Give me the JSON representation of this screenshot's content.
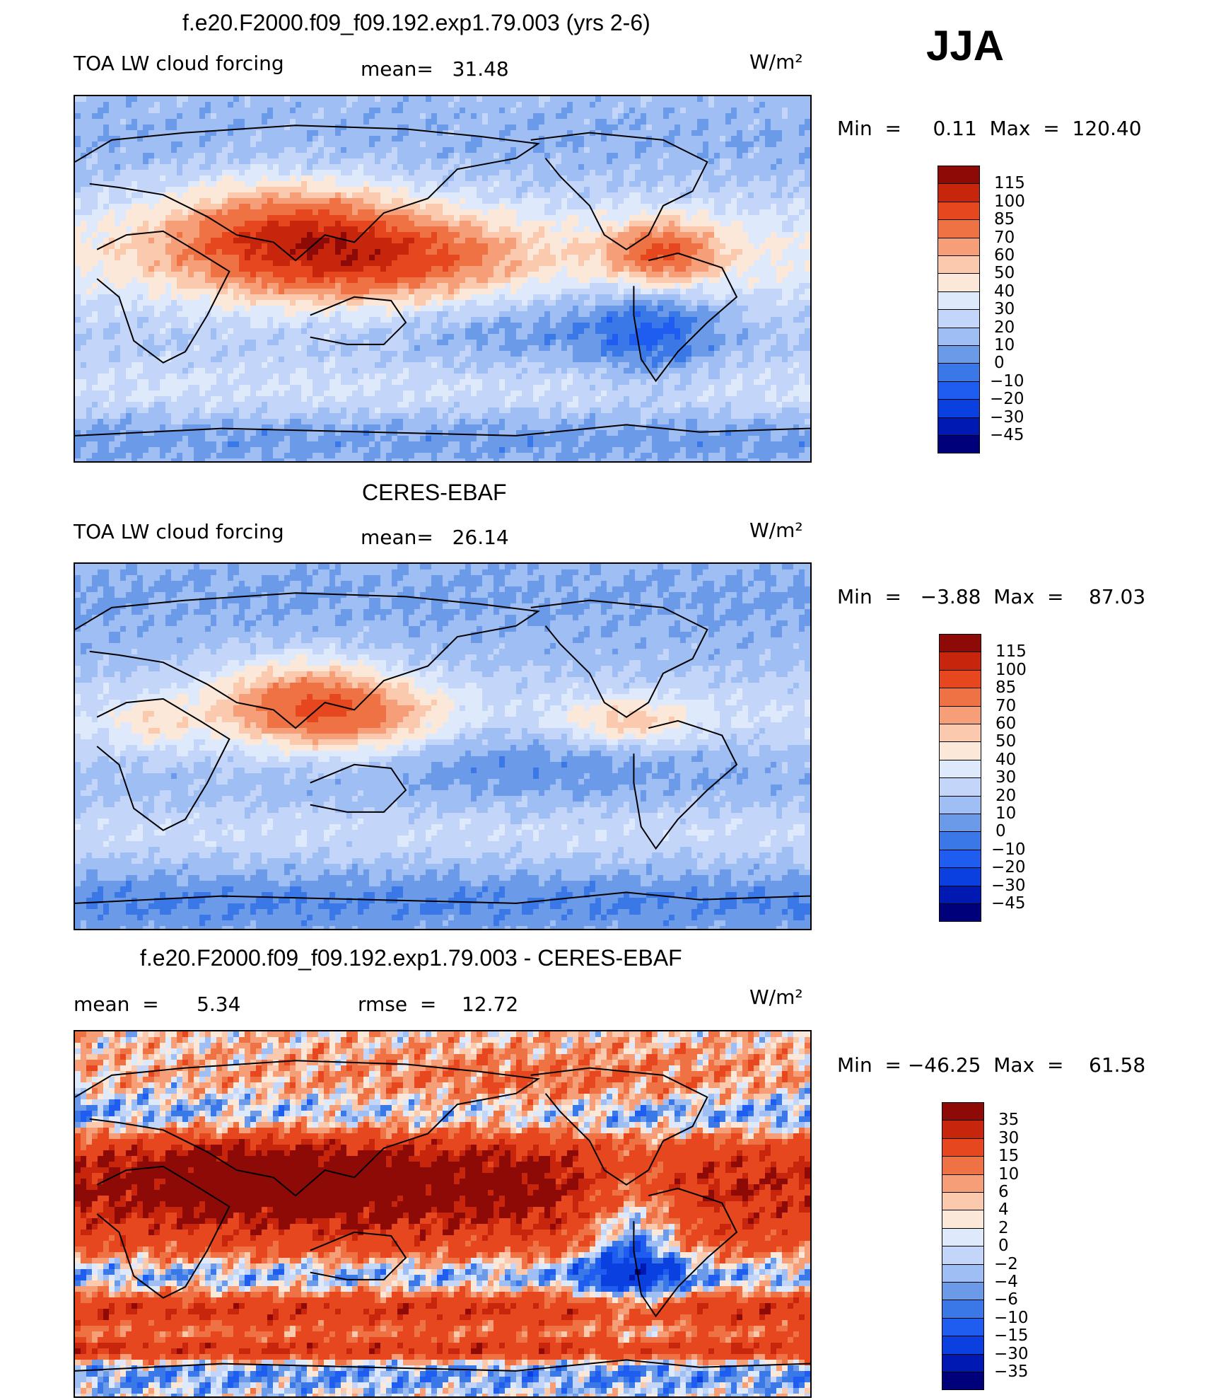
{
  "season": "JJA",
  "colors": {
    "map_palette": [
      "#00007a",
      "#0019b3",
      "#0a3fe0",
      "#1f5cf0",
      "#3a78e8",
      "#6a9ae8",
      "#9fbff4",
      "#c3d6fa",
      "#deeafb",
      "#fbe8d8",
      "#fbc9ad",
      "#f59e78",
      "#ef7244",
      "#e6471f",
      "#c8250d",
      "#8e0a06"
    ],
    "background": "#ffffff",
    "coastline": "#000000"
  },
  "panels": [
    {
      "title": "f.e20.F2000.f09_f09.192.exp1.79.003 (yrs 2-6)",
      "left_label": "TOA LW cloud forcing",
      "center_label": "mean=   31.48",
      "units": "W/m²",
      "minmax": "Min  =     0.11  Max  =  120.40",
      "colorbar_ticks": [
        "115",
        "100",
        "85",
        "70",
        "60",
        "50",
        "40",
        "30",
        "20",
        "10",
        "0",
        "−10",
        "−20",
        "−30",
        "−45"
      ],
      "field": "model"
    },
    {
      "title": "CERES-EBAF",
      "left_label": "TOA LW cloud forcing",
      "center_label": "mean=   26.14",
      "units": "W/m²",
      "minmax": "Min  =   −3.88  Max  =    87.03",
      "colorbar_ticks": [
        "115",
        "100",
        "85",
        "70",
        "60",
        "50",
        "40",
        "30",
        "20",
        "10",
        "0",
        "−10",
        "−20",
        "−30",
        "−45"
      ],
      "field": "obs"
    },
    {
      "title": "f.e20.F2000.f09_f09.192.exp1.79.003 - CERES-EBAF",
      "left_label": "mean  =      5.34",
      "center_label": "rmse  =    12.72",
      "units": "W/m²",
      "minmax": "Min  = −46.25  Max  =    61.58",
      "colorbar_ticks": [
        "35",
        "30",
        "15",
        "10",
        "6",
        "4",
        "2",
        "0",
        "−2",
        "−4",
        "−6",
        "−10",
        "−15",
        "−30",
        "−35"
      ],
      "field": "diff"
    }
  ]
}
